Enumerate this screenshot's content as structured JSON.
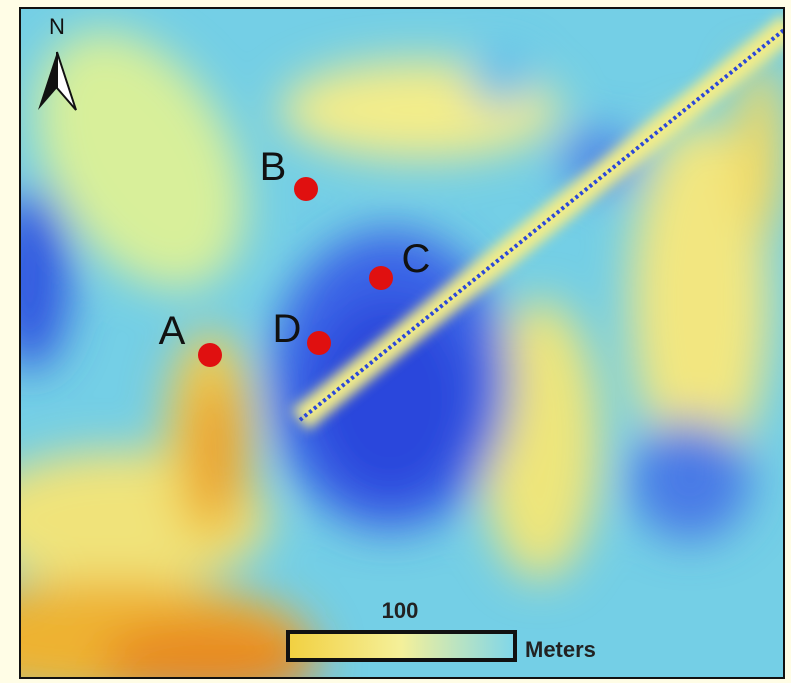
{
  "north_label": "N",
  "points": [
    {
      "label": "A"
    },
    {
      "label": "B"
    },
    {
      "label": "C"
    },
    {
      "label": "D"
    }
  ],
  "scale_bar": {
    "value_label": "100",
    "unit": "Meters"
  }
}
